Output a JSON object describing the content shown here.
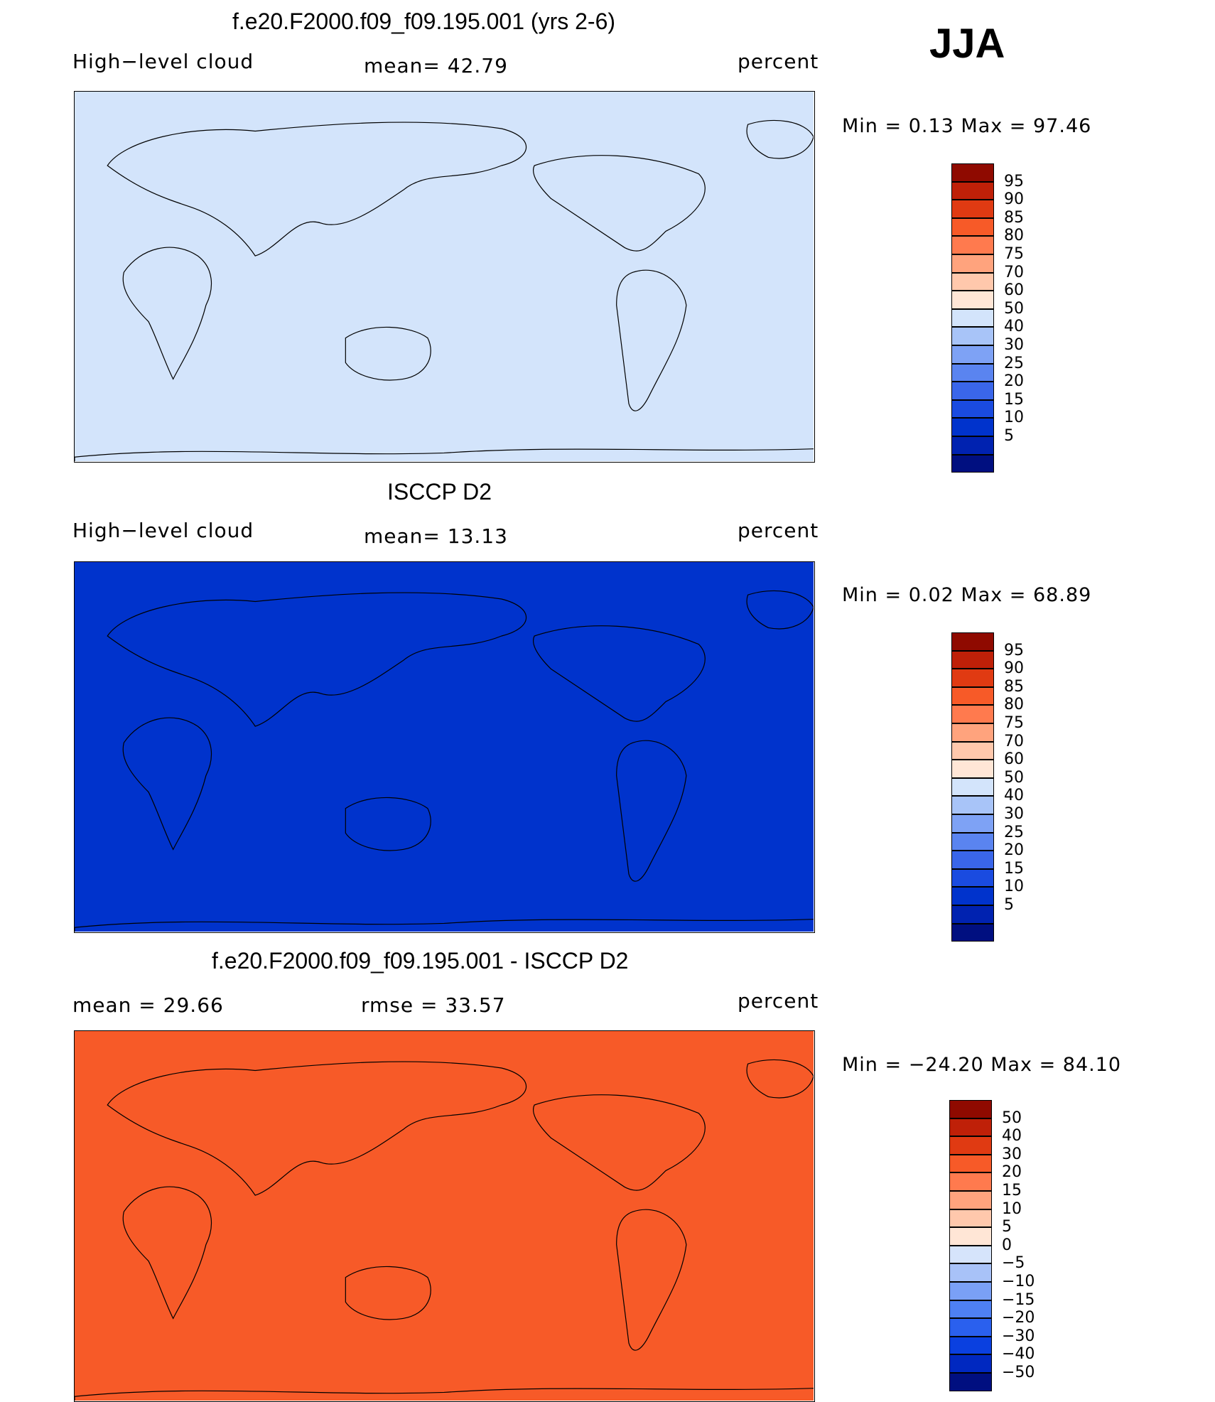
{
  "season": "JJA",
  "colors": {
    "abs_scale": [
      "#000f80",
      "#0022b0",
      "#0033cc",
      "#1a4be0",
      "#3a66ea",
      "#5a84f0",
      "#7ea2f5",
      "#a8c4f8",
      "#d3e4fb",
      "#ffe6d6",
      "#ffc8ac",
      "#ffa37d",
      "#ff7a4e",
      "#f75a28",
      "#e03a12",
      "#bf2008",
      "#8f0a00"
    ],
    "diff_scale": [
      "#000f80",
      "#0028c0",
      "#0a40e0",
      "#2a60ee",
      "#4e80f3",
      "#7aa0f6",
      "#a8c2f8",
      "#d6e4fb",
      "#ffe6d6",
      "#ffc8ac",
      "#ffa37d",
      "#ff7a4e",
      "#f75a28",
      "#e03a12",
      "#bf2008",
      "#8f0a00"
    ]
  },
  "panels": [
    {
      "title": "f.e20.F2000.f09_f09.195.001 (yrs 2-6)",
      "left_label": "High−level cloud",
      "mean_text": "mean=   42.79",
      "units": "percent",
      "minmax": "Min  =     0.13  Max  =    97.46",
      "colorbar_levels": [
        "95",
        "90",
        "85",
        "80",
        "75",
        "70",
        "60",
        "50",
        "40",
        "30",
        "25",
        "20",
        "15",
        "10",
        "5"
      ],
      "map_fill": "#d3e4fb"
    },
    {
      "title": "ISCCP D2",
      "left_label": "High−level cloud",
      "mean_text": "mean=   13.13",
      "units": "percent",
      "minmax": "Min  =     0.02  Max  =    68.89",
      "colorbar_levels": [
        "95",
        "90",
        "85",
        "80",
        "75",
        "70",
        "60",
        "50",
        "40",
        "30",
        "25",
        "20",
        "15",
        "10",
        "5"
      ],
      "map_fill": "#0033cc"
    },
    {
      "title": "f.e20.F2000.f09_f09.195.001 - ISCCP D2",
      "left_label": "mean  =    29.66",
      "mean_text": "rmse  =    33.57",
      "units": "percent",
      "minmax": "Min  = −24.20  Max  =    84.10",
      "colorbar_levels": [
        "50",
        "40",
        "30",
        "20",
        "15",
        "10",
        "5",
        "0",
        "−5",
        "−10",
        "−15",
        "−20",
        "−30",
        "−40",
        "−50"
      ],
      "map_fill": "#f75a28"
    }
  ],
  "chart_data": [
    {
      "type": "heatmap",
      "title": "f.e20.F2000.f09_f09.195.001 (yrs 2-6)",
      "variable": "High−level cloud",
      "units": "percent",
      "mean": 42.79,
      "min": 0.13,
      "max": 97.46,
      "contour_levels": [
        5,
        10,
        15,
        20,
        25,
        30,
        40,
        50,
        60,
        70,
        75,
        80,
        85,
        90,
        95
      ],
      "grid": false
    },
    {
      "type": "heatmap",
      "title": "ISCCP D2",
      "variable": "High−level cloud",
      "units": "percent",
      "mean": 13.13,
      "min": 0.02,
      "max": 68.89,
      "contour_levels": [
        5,
        10,
        15,
        20,
        25,
        30,
        40,
        50,
        60,
        70,
        75,
        80,
        85,
        90,
        95
      ],
      "grid": false
    },
    {
      "type": "heatmap",
      "title": "f.e20.F2000.f09_f09.195.001 - ISCCP D2",
      "units": "percent",
      "mean": 29.66,
      "rmse": 33.57,
      "min": -24.2,
      "max": 84.1,
      "contour_levels": [
        -50,
        -40,
        -30,
        -20,
        -15,
        -10,
        -5,
        0,
        5,
        10,
        15,
        20,
        30,
        40,
        50
      ],
      "grid": false
    }
  ]
}
